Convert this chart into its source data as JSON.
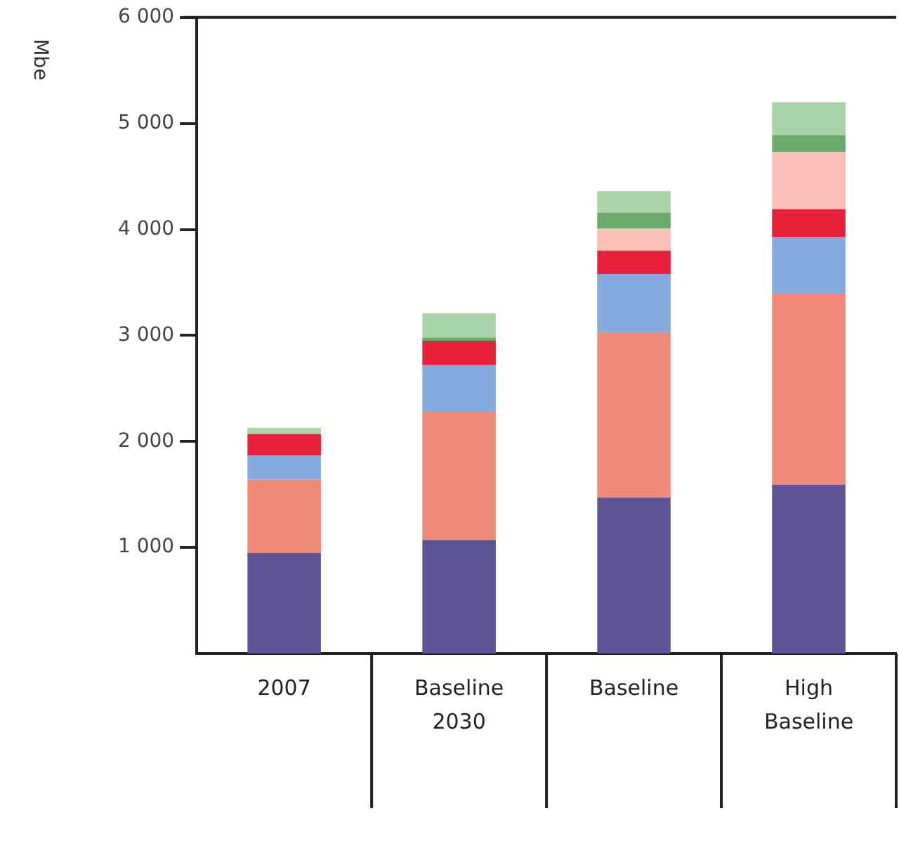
{
  "chart_data": {
    "type": "bar",
    "stacked": true,
    "ylabel": "Mbe",
    "categories": [
      "2007",
      "Baseline\n2030",
      "Baseline",
      "High\nBaseline"
    ],
    "ylim": [
      0,
      6000
    ],
    "yticks": [
      {
        "value": 1000,
        "label": "1 000"
      },
      {
        "value": 2000,
        "label": "2 000"
      },
      {
        "value": 3000,
        "label": "3 000"
      },
      {
        "value": 4000,
        "label": "4 000"
      },
      {
        "value": 5000,
        "label": "5 000"
      },
      {
        "value": 6000,
        "label": "6 000"
      }
    ],
    "grid": false,
    "legend": false,
    "series": [
      {
        "color": "#5e5596",
        "values": [
          950,
          1070,
          1470,
          1590
        ]
      },
      {
        "color": "#f08a78",
        "values": [
          690,
          1210,
          1560,
          1810
        ]
      },
      {
        "color": "#85aadd",
        "values": [
          230,
          440,
          550,
          530
        ]
      },
      {
        "color": "#e8203a",
        "values": [
          200,
          230,
          220,
          260
        ]
      },
      {
        "color": "#fbbfb8",
        "values": [
          null,
          null,
          210,
          540
        ]
      },
      {
        "color": "#6aaa6a",
        "values": [
          null,
          30,
          150,
          160
        ]
      },
      {
        "color": "#a8d4a8",
        "values": [
          60,
          230,
          200,
          310
        ]
      }
    ]
  }
}
